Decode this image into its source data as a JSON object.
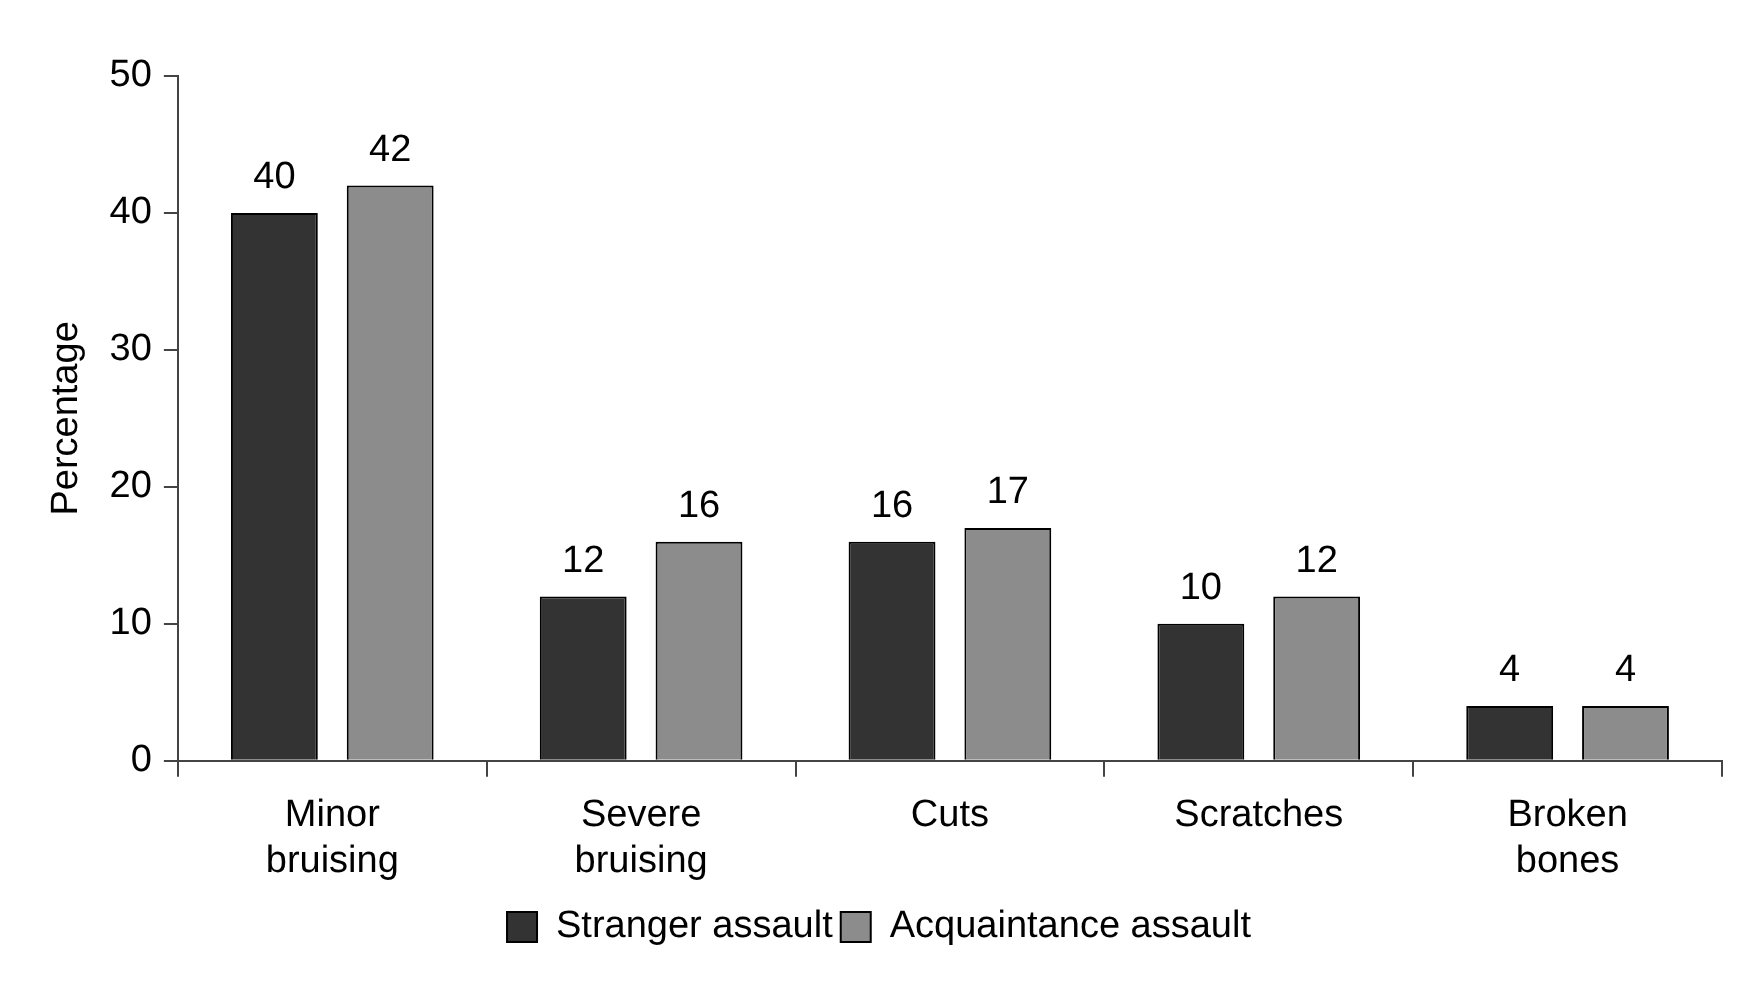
{
  "chart_data": {
    "type": "bar",
    "ylabel": "Percentage",
    "categories": [
      "Minor bruising",
      "Severe bruising",
      "Cuts",
      "Scratches",
      "Broken bones"
    ],
    "series": [
      {
        "name": "Stranger assault",
        "color": "#333333",
        "values": [
          40,
          12,
          16,
          10,
          4
        ]
      },
      {
        "name": "Acquaintance assault",
        "color": "#8c8c8c",
        "values": [
          42,
          16,
          17,
          12,
          4
        ]
      }
    ],
    "ylim": [
      0,
      50
    ],
    "yticks": [
      0,
      10,
      20,
      30,
      40,
      50
    ],
    "grid": false,
    "legend": "bottom",
    "data_labels": true
  }
}
